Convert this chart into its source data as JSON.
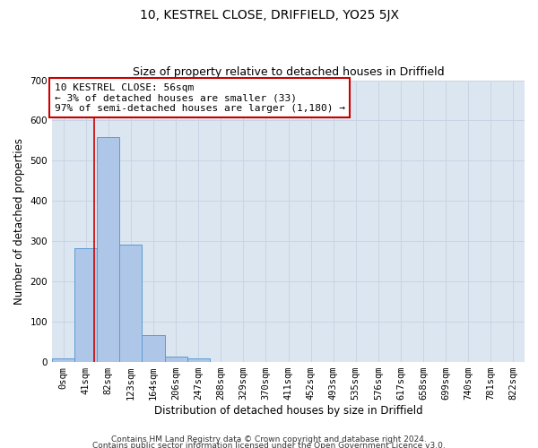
{
  "title_line1": "10, KESTREL CLOSE, DRIFFIELD, YO25 5JX",
  "title_line2": "Size of property relative to detached houses in Driffield",
  "xlabel": "Distribution of detached houses by size in Driffield",
  "ylabel": "Number of detached properties",
  "bar_labels": [
    "0sqm",
    "41sqm",
    "82sqm",
    "123sqm",
    "164sqm",
    "206sqm",
    "247sqm",
    "288sqm",
    "329sqm",
    "370sqm",
    "411sqm",
    "452sqm",
    "493sqm",
    "535sqm",
    "576sqm",
    "617sqm",
    "658sqm",
    "699sqm",
    "740sqm",
    "781sqm",
    "822sqm"
  ],
  "bar_values": [
    8,
    283,
    558,
    291,
    67,
    13,
    8,
    0,
    0,
    0,
    0,
    0,
    0,
    0,
    0,
    0,
    0,
    0,
    0,
    0,
    0
  ],
  "bar_color": "#aec6e8",
  "bar_edge_color": "#5b9bd5",
  "vline_x": 1.36,
  "vline_color": "#cc0000",
  "annotation_text": "10 KESTREL CLOSE: 56sqm\n← 3% of detached houses are smaller (33)\n97% of semi-detached houses are larger (1,180) →",
  "annotation_box_color": "#ffffff",
  "annotation_box_edge_color": "#cc0000",
  "ylim": [
    0,
    700
  ],
  "yticks": [
    0,
    100,
    200,
    300,
    400,
    500,
    600,
    700
  ],
  "grid_color": "#c8d4e3",
  "bg_color": "#dce6f0",
  "footer_line1": "Contains HM Land Registry data © Crown copyright and database right 2024.",
  "footer_line2": "Contains public sector information licensed under the Open Government Licence v3.0.",
  "title_fontsize": 10,
  "subtitle_fontsize": 9,
  "axis_label_fontsize": 8.5,
  "tick_fontsize": 7.5,
  "annotation_fontsize": 8,
  "footer_fontsize": 6.5
}
